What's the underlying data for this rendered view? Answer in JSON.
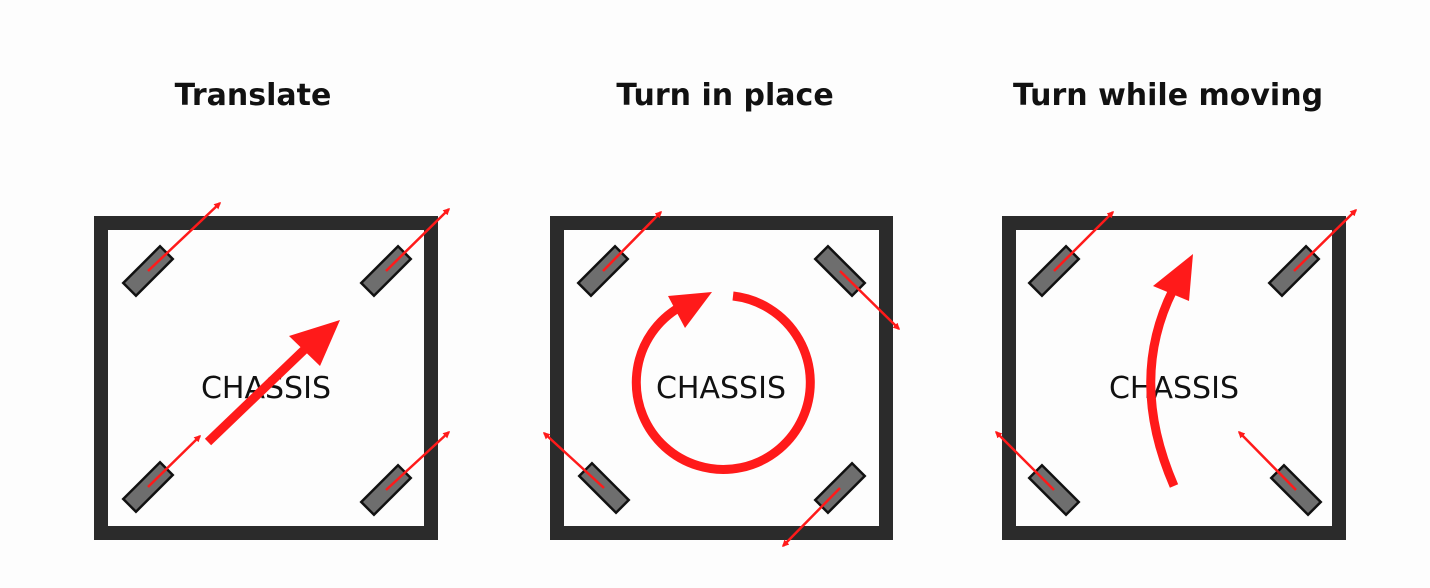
{
  "panels": [
    {
      "title": "Translate",
      "chassis_label": "CHASSIS"
    },
    {
      "title": "Turn in place",
      "chassis_label": "CHASSIS"
    },
    {
      "title": "Turn while moving",
      "chassis_label": "CHASSIS"
    }
  ],
  "colors": {
    "frame": "#2b2b2b",
    "wheel": "#6e6e6e",
    "arrow": "#ff1a1a",
    "text": "#111111"
  }
}
